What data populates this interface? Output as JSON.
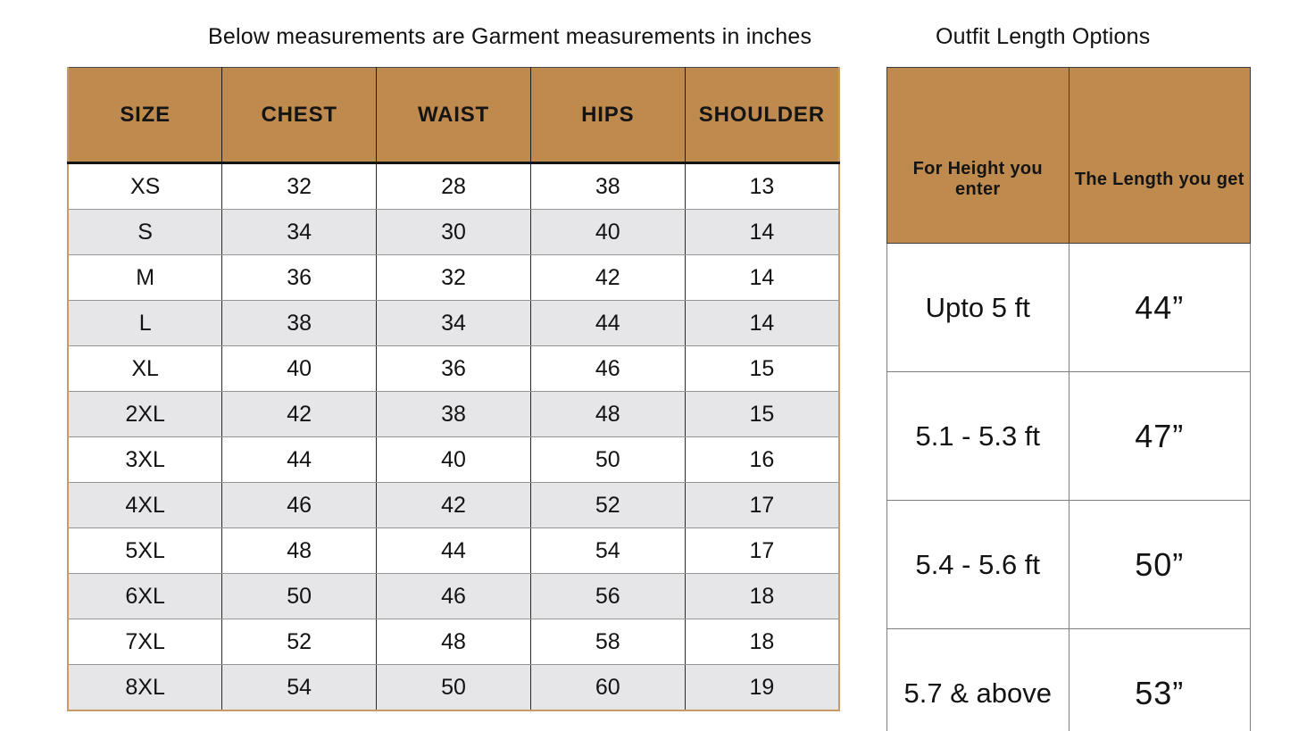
{
  "titles": {
    "left": "Below measurements are Garment measurements in inches",
    "right": "Outfit Length Options"
  },
  "size_table": {
    "columns": [
      "SIZE",
      "CHEST",
      "WAIST",
      "HIPS",
      "SHOULDER"
    ],
    "rows": [
      [
        "XS",
        "32",
        "28",
        "38",
        "13"
      ],
      [
        "S",
        "34",
        "30",
        "40",
        "14"
      ],
      [
        "M",
        "36",
        "32",
        "42",
        "14"
      ],
      [
        "L",
        "38",
        "34",
        "44",
        "14"
      ],
      [
        "XL",
        "40",
        "36",
        "46",
        "15"
      ],
      [
        "2XL",
        "42",
        "38",
        "48",
        "15"
      ],
      [
        "3XL",
        "44",
        "40",
        "50",
        "16"
      ],
      [
        "4XL",
        "46",
        "42",
        "52",
        "17"
      ],
      [
        "5XL",
        "48",
        "44",
        "54",
        "17"
      ],
      [
        "6XL",
        "50",
        "46",
        "56",
        "18"
      ],
      [
        "7XL",
        "52",
        "48",
        "58",
        "18"
      ],
      [
        "8XL",
        "54",
        "50",
        "60",
        "19"
      ]
    ]
  },
  "length_table": {
    "columns": [
      "For Height you enter",
      "The Length you get"
    ],
    "rows": [
      [
        "Upto 5 ft",
        "44”"
      ],
      [
        "5.1 - 5.3 ft",
        "47”"
      ],
      [
        "5.4 - 5.6 ft",
        "50”"
      ],
      [
        "5.7 & above",
        "53”"
      ]
    ]
  },
  "colors": {
    "header_bg": "#bf8a4e",
    "alt_row_bg": "#e6e6e8",
    "outer_border_tan": "#c79a66",
    "text": "#131313",
    "background": "#ffffff"
  },
  "chart_data": [
    {
      "type": "table",
      "title": "Below measurements are Garment measurements in inches",
      "columns": [
        "SIZE",
        "CHEST",
        "WAIST",
        "HIPS",
        "SHOULDER"
      ],
      "rows": [
        [
          "XS",
          32,
          28,
          38,
          13
        ],
        [
          "S",
          34,
          30,
          40,
          14
        ],
        [
          "M",
          36,
          32,
          42,
          14
        ],
        [
          "L",
          38,
          34,
          44,
          14
        ],
        [
          "XL",
          40,
          36,
          46,
          15
        ],
        [
          "2XL",
          42,
          38,
          48,
          15
        ],
        [
          "3XL",
          44,
          40,
          50,
          16
        ],
        [
          "4XL",
          46,
          42,
          52,
          17
        ],
        [
          "5XL",
          48,
          44,
          54,
          17
        ],
        [
          "6XL",
          50,
          46,
          56,
          18
        ],
        [
          "7XL",
          52,
          48,
          58,
          18
        ],
        [
          "8XL",
          54,
          50,
          60,
          19
        ]
      ]
    },
    {
      "type": "table",
      "title": "Outfit Length Options",
      "columns": [
        "For Height you enter",
        "The Length you get"
      ],
      "rows": [
        [
          "Upto 5 ft",
          "44”"
        ],
        [
          "5.1 - 5.3 ft",
          "47”"
        ],
        [
          "5.4 - 5.6 ft",
          "50”"
        ],
        [
          "5.7 & above",
          "53”"
        ]
      ]
    }
  ]
}
